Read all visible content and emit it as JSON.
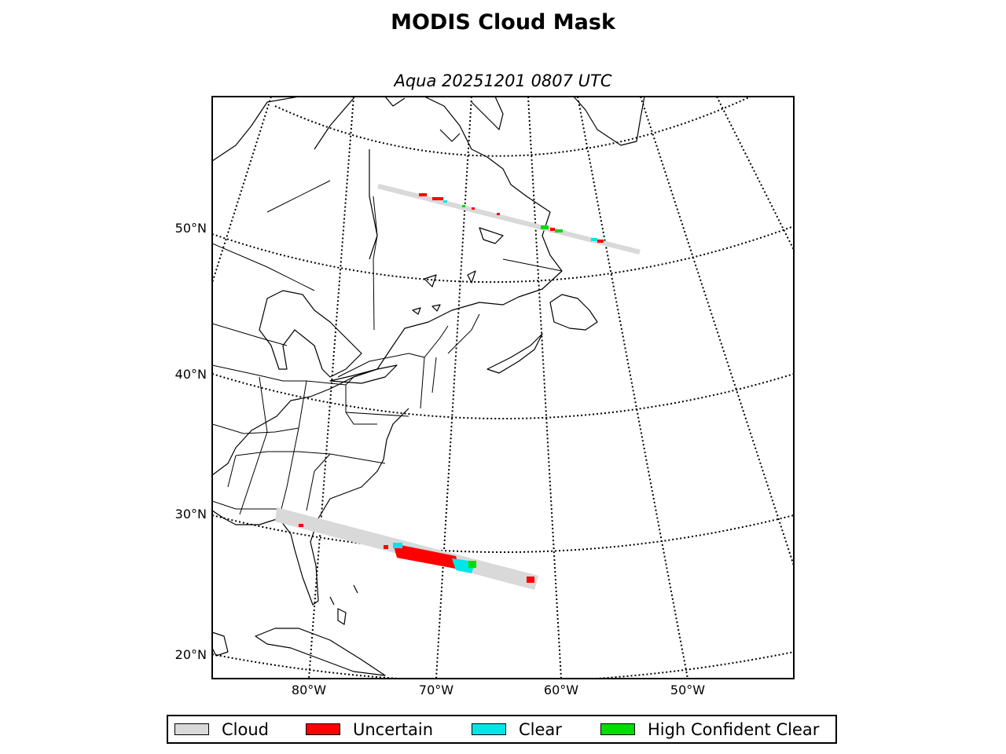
{
  "figure": {
    "title": "MODIS Cloud Mask",
    "subtitle": "Aqua 20251201 0807 UTC"
  },
  "map": {
    "projection": "oblique-conic",
    "lat_labels": [
      "20°N",
      "30°N",
      "40°N",
      "50°N"
    ],
    "lon_labels": [
      "80°W",
      "70°W",
      "60°W",
      "50°W"
    ],
    "graticule_style": "dotted",
    "coastlines": true,
    "political_boundaries": true,
    "swaths": [
      {
        "name": "northern-swath",
        "segments": [
          "Cloud",
          "Uncertain",
          "Clear",
          "High Confident Clear"
        ]
      },
      {
        "name": "southern-swath",
        "segments": [
          "Cloud",
          "Uncertain",
          "Clear",
          "High Confident Clear"
        ]
      }
    ]
  },
  "legend": {
    "placement": "bottom-center",
    "items": [
      {
        "label": "Cloud",
        "color": "#d9d9d9"
      },
      {
        "label": "Uncertain",
        "color": "#ff0000"
      },
      {
        "label": "Clear",
        "color": "#00e6e6"
      },
      {
        "label": "High Confident Clear",
        "color": "#00dd00"
      }
    ]
  }
}
